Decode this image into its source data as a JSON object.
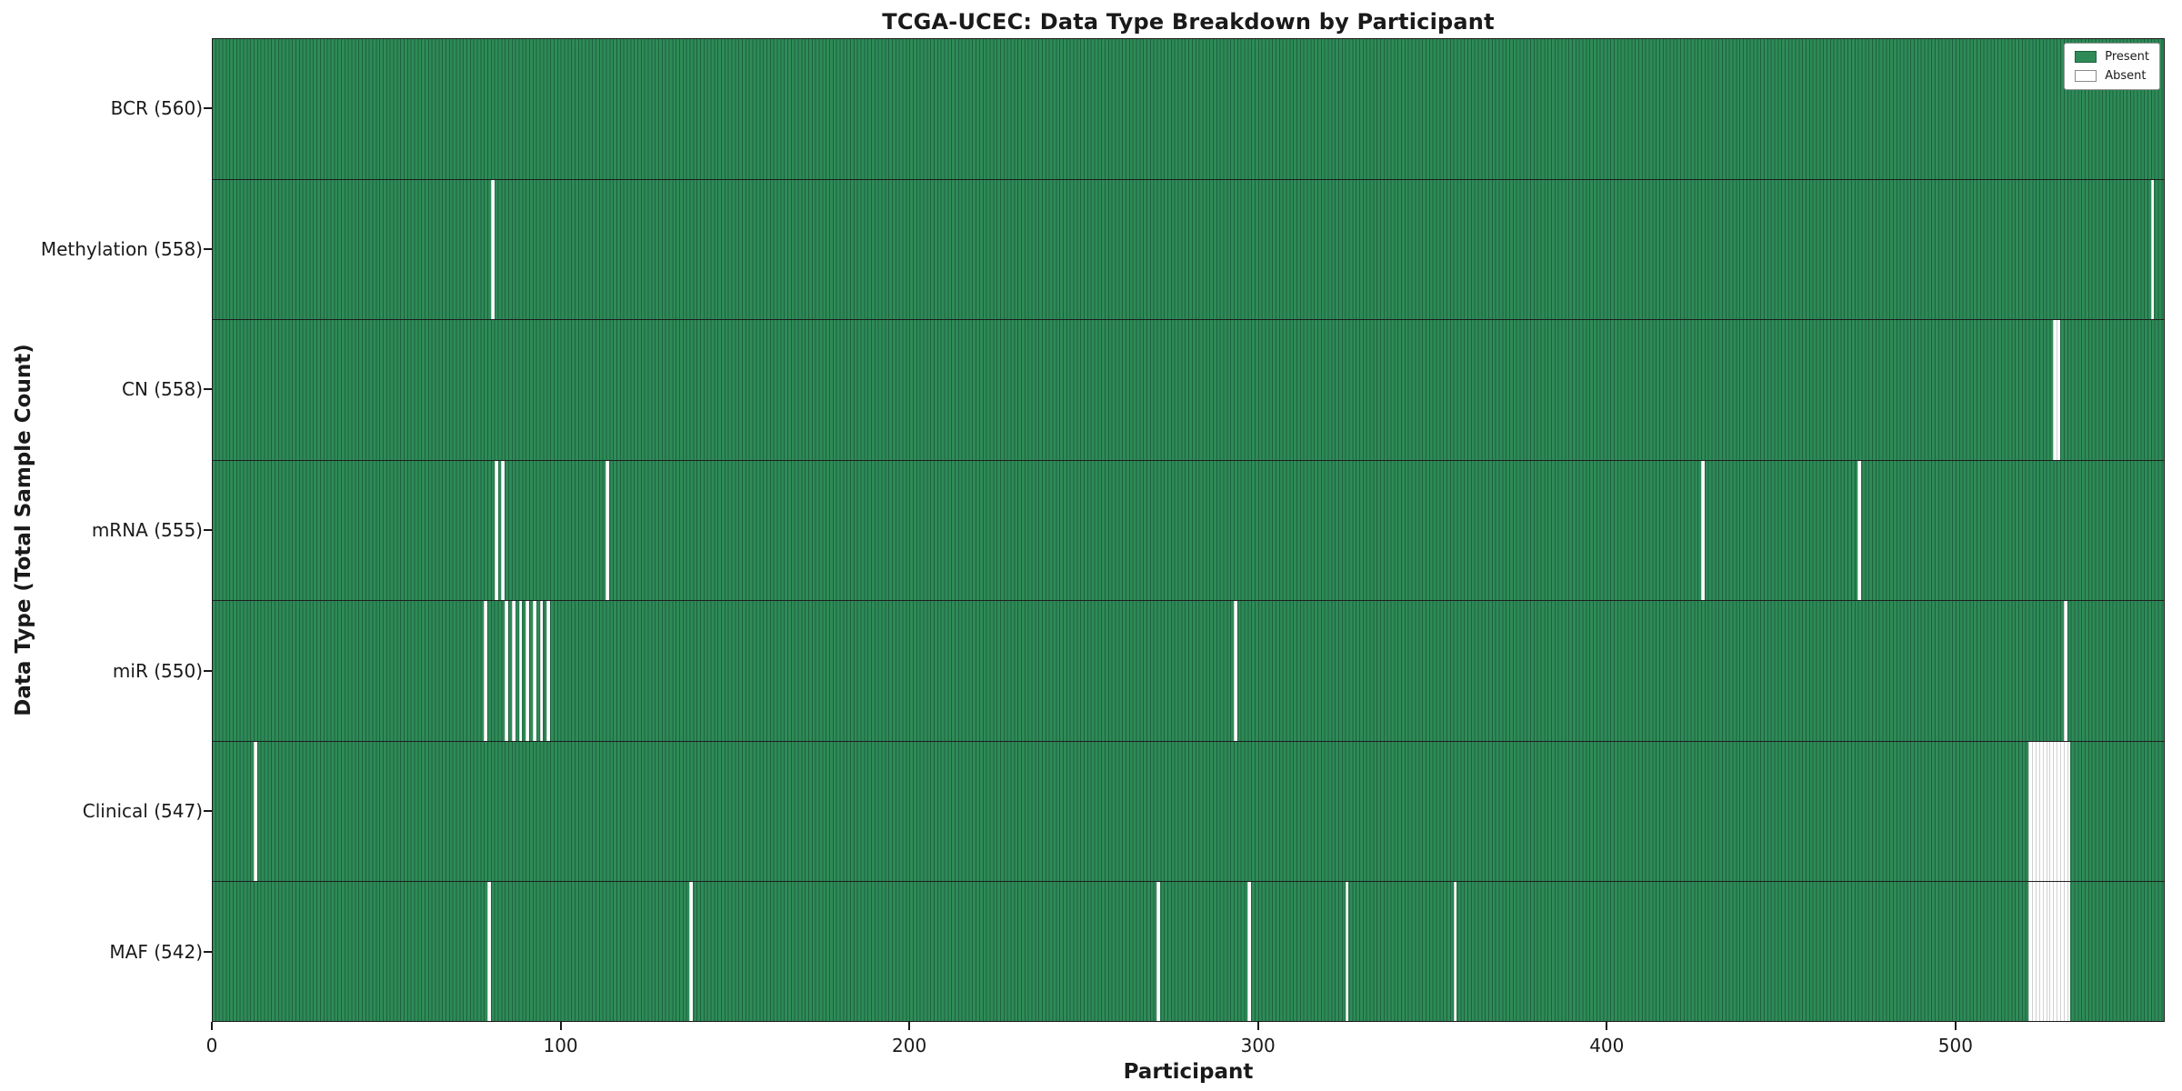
{
  "chart_data": {
    "type": "heatmap",
    "title": "TCGA-UCEC: Data Type Breakdown by Participant",
    "xlabel": "Participant",
    "ylabel": "Data Type (Total Sample Count)",
    "n_participants": 560,
    "x_ticks": [
      0,
      100,
      200,
      300,
      400,
      500
    ],
    "legend": {
      "present_label": "Present",
      "absent_label": "Absent"
    },
    "colors": {
      "present": "#2e8b57",
      "present_edge": "#1e6140",
      "absent": "#ffffff"
    },
    "grid": false,
    "legend_position": "upper right",
    "rows": [
      {
        "label": "BCR",
        "count": 560,
        "absent": []
      },
      {
        "label": "Methylation",
        "count": 558,
        "absent": [
          80,
          556
        ]
      },
      {
        "label": "CN",
        "count": 558,
        "absent": [
          528,
          529
        ]
      },
      {
        "label": "mRNA",
        "count": 555,
        "absent": [
          81,
          83,
          113,
          427,
          472
        ]
      },
      {
        "label": "miR",
        "count": 550,
        "absent": [
          78,
          84,
          86,
          88,
          90,
          92,
          94,
          96,
          293,
          531
        ]
      },
      {
        "label": "Clinical",
        "count": 547,
        "absent": [
          12,
          521,
          522,
          523,
          524,
          525,
          526,
          527,
          528,
          529,
          530,
          531,
          532
        ]
      },
      {
        "label": "MAF",
        "count": 542,
        "absent": [
          79,
          137,
          271,
          297,
          325,
          356,
          521,
          522,
          523,
          524,
          525,
          526,
          527,
          528,
          529,
          530,
          531,
          532
        ]
      }
    ]
  }
}
